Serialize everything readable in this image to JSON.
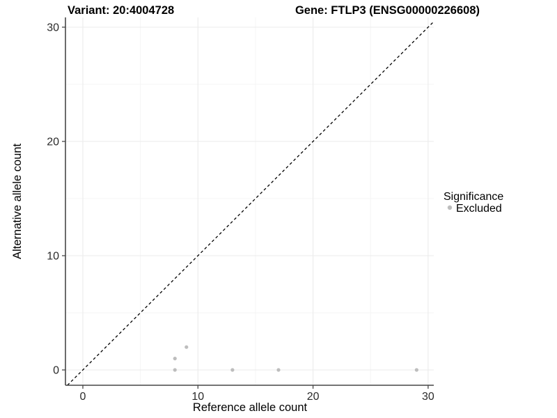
{
  "chart_data": {
    "type": "scatter",
    "title_left": "Variant: 20:4004728",
    "title_right": "Gene: FTLP3 (ENSG00000226608)",
    "xlabel": "Reference allele count",
    "ylabel": "Alternative allele count",
    "x_ticks": [
      0,
      10,
      20,
      30
    ],
    "y_ticks": [
      0,
      10,
      20,
      30
    ],
    "minor_ticks": [
      5,
      15,
      25
    ],
    "xlim": [
      -1.5,
      31.5
    ],
    "ylim": [
      -1.5,
      31.5
    ],
    "grid": "major and minor, light grey on white",
    "identity_line": {
      "style": "dashed",
      "color": "#000000"
    },
    "legend": {
      "position": "right",
      "title": "Significance",
      "items": [
        {
          "label": "Excluded",
          "color": "#bdbdbd"
        }
      ]
    },
    "series": [
      {
        "name": "Excluded",
        "color": "#bdbdbd",
        "points": [
          [
            8,
            0
          ],
          [
            8,
            1
          ],
          [
            9,
            2
          ],
          [
            13,
            0
          ],
          [
            17,
            0
          ],
          [
            29,
            0
          ]
        ]
      }
    ]
  },
  "colors": {
    "background": "#ffffff",
    "grid_major": "#ebebeb",
    "grid_minor": "#f5f5f5",
    "axis_line": "#474747",
    "tick_text": "#2b2b2b",
    "point": "#bdbdbd"
  }
}
